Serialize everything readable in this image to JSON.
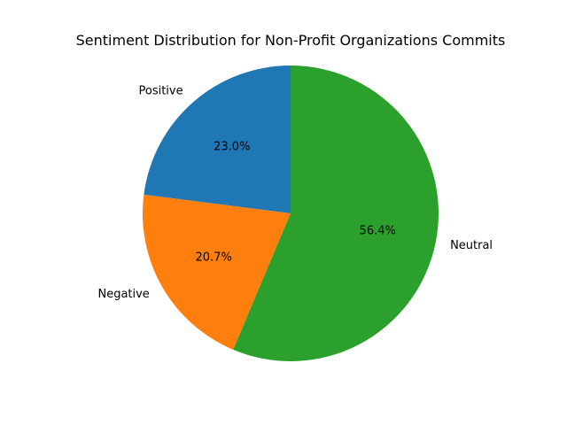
{
  "chart_data": {
    "type": "pie",
    "title": "Sentiment Distribution for Non-Profit Organizations Commits",
    "start_angle_deg": 90,
    "direction": "counterclockwise",
    "slices": [
      {
        "label": "Positive",
        "value": 23.0,
        "pct_text": "23.0%",
        "color": "#1f77b4"
      },
      {
        "label": "Negative",
        "value": 20.7,
        "pct_text": "20.7%",
        "color": "#ff7f0e"
      },
      {
        "label": "Neutral",
        "value": 56.4,
        "pct_text": "56.4%",
        "color": "#2ca02c"
      }
    ],
    "legend": "none"
  }
}
